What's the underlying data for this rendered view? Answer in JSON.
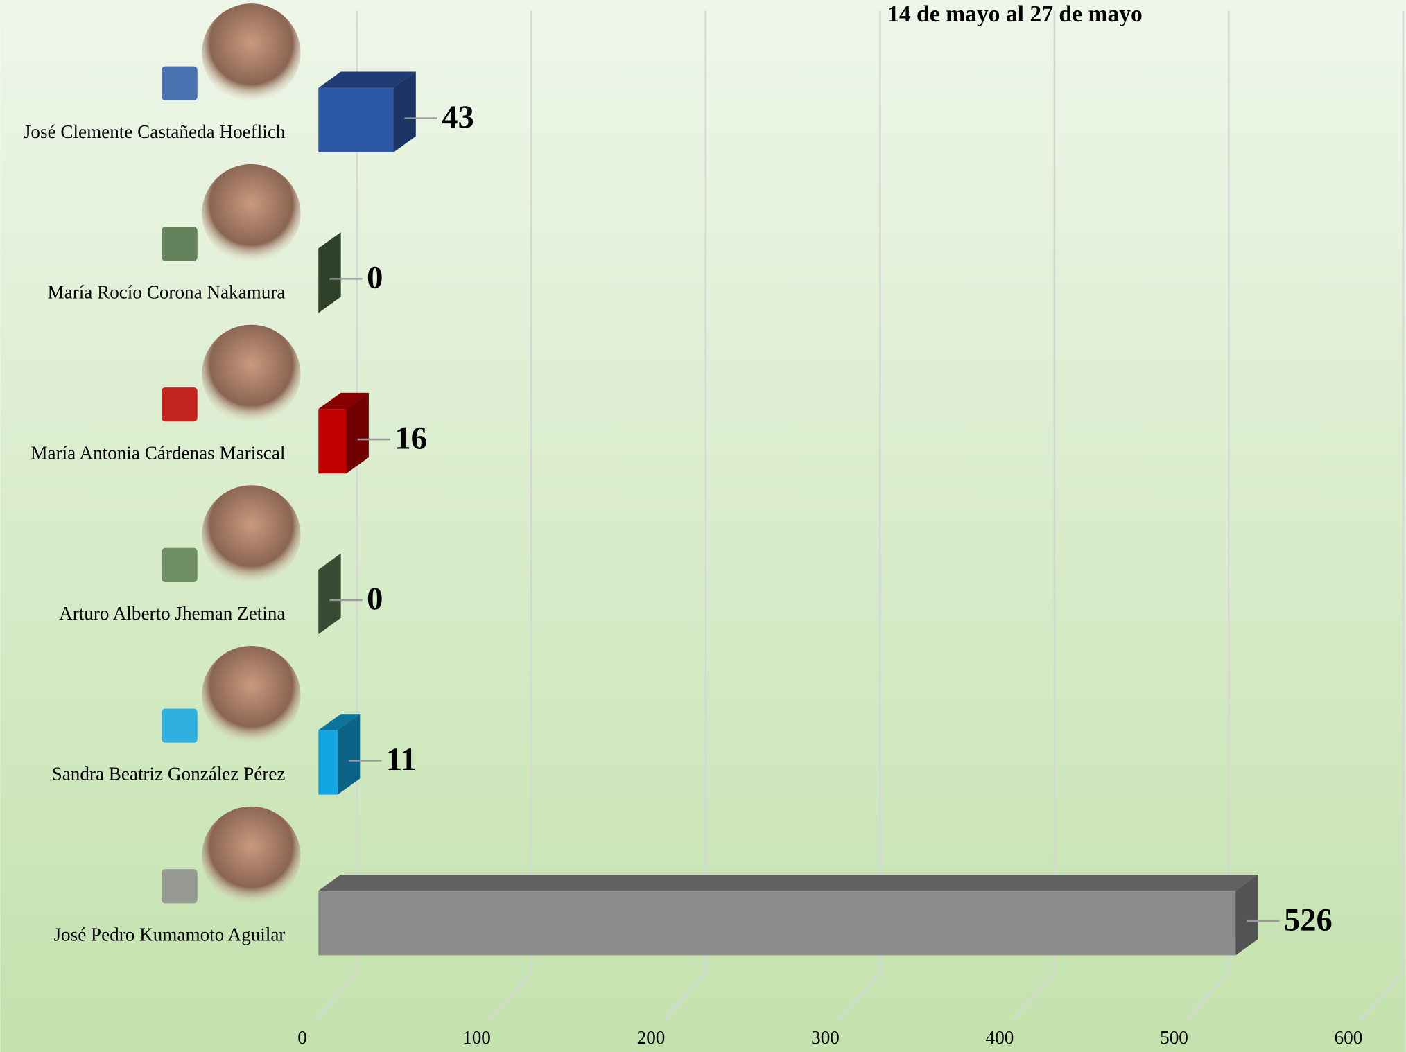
{
  "chart_data": {
    "type": "bar",
    "orientation": "horizontal",
    "subtitle": "14 de mayo al 27 de mayo",
    "categories": [
      "José Clemente Castañeda Hoeflich",
      "María Rocío Corona Nakamura",
      "María Antonia Cárdenas Mariscal",
      "Arturo Alberto Jheman Zetina",
      "Sandra Beatriz González Pérez",
      "José Pedro Kumamoto Aguilar"
    ],
    "values": [
      43,
      0,
      16,
      0,
      11,
      526
    ],
    "colors": [
      "#2d58a6",
      "#4d6e45",
      "#c00000",
      "#5f7f55",
      "#14a6e3",
      "#8c8c8c"
    ],
    "xlim": [
      0,
      600
    ],
    "xticks": [
      0,
      100,
      200,
      300,
      400,
      500,
      600
    ],
    "grid": true
  }
}
